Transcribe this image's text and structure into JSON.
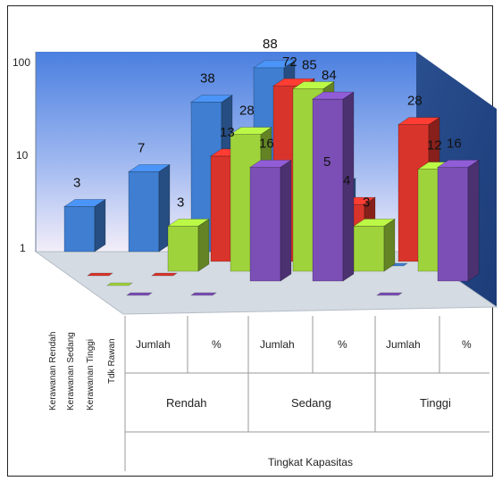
{
  "chart_data": {
    "type": "bar",
    "ylim": [
      1,
      100
    ],
    "yscale": "log",
    "yticks": [
      "1",
      "10",
      "100"
    ],
    "groups": [
      "Rendah",
      "Sedang",
      "Tinggi"
    ],
    "categories": [
      "Jumlah",
      "%",
      "Jumlah",
      "%",
      "Jumlah",
      "%"
    ],
    "xlabel": "Tingkat Kapasitas",
    "series": [
      {
        "name": "Kerawanan Rendah",
        "color": "#3f7ed1",
        "values": [
          3,
          7,
          38,
          88,
          5,
          null
        ]
      },
      {
        "name": "Kerawanan Sedang",
        "color": "#d9342b",
        "values": [
          null,
          null,
          13,
          72,
          4,
          28
        ]
      },
      {
        "name": "Kerawanan Tinggi",
        "color": "#9fd33c",
        "values": [
          null,
          3,
          28,
          85,
          3,
          12
        ]
      },
      {
        "name": "Tdk Rawan",
        "color": "#7b4fb6",
        "values": [
          null,
          null,
          16,
          84,
          null,
          16
        ]
      }
    ],
    "value_labels": {
      "Kerawanan Rendah": [
        "3",
        "7",
        "38",
        "88",
        "5",
        ""
      ],
      "Kerawanan Sedang": [
        "",
        "",
        "13",
        "72",
        "4",
        "28"
      ],
      "Kerawanan Tinggi": [
        "",
        "3",
        "28",
        "85",
        "3",
        "12"
      ],
      "Tdk Rawan": [
        "",
        "",
        "16",
        "84",
        "",
        "16"
      ]
    }
  }
}
